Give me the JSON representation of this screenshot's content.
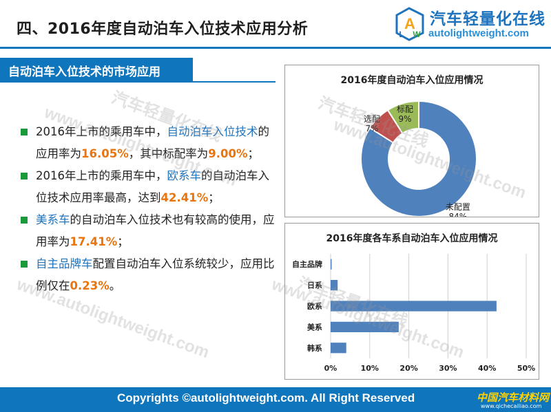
{
  "header": {
    "title": "四、2016年度自动泊车入位技术应用分析",
    "logo_cn": "汽车轻量化在线",
    "logo_en": "autolightweight.com"
  },
  "section": {
    "banner": "自动泊车入位技术的市场应用"
  },
  "bullets": [
    {
      "parts": [
        "2016年上市的乘用车中，",
        "自动泊车入位技术",
        "的应用率为",
        "16.05%",
        "，其中标配率为",
        "9.00%",
        "；"
      ]
    },
    {
      "parts": [
        "2016年上市的乘用车中，",
        "欧系车",
        "的自动泊车入位技术应用率最高，达到",
        "42.41%",
        "；"
      ]
    },
    {
      "parts": [
        "美系车",
        "的自动泊车入位技术也有较高的使用，应用率为",
        "17.41%",
        "；"
      ]
    },
    {
      "parts": [
        "自主品牌车",
        "配置自动泊车入位系统较少，应用比例仅在",
        "0.23%",
        "。"
      ]
    }
  ],
  "chart_data": [
    {
      "type": "pie",
      "title": "2016年度自动泊车入位应用情况",
      "categories": [
        "未配置",
        "选配",
        "标配"
      ],
      "values": [
        84,
        7,
        9
      ],
      "value_labels": [
        "84%",
        "7%",
        "9%"
      ],
      "colors": [
        "#4f81bd",
        "#c0504d",
        "#9bbb59"
      ],
      "donut": true
    },
    {
      "type": "bar",
      "orientation": "horizontal",
      "title": "2016年度各车系自动泊车入位应用情况",
      "categories": [
        "自主品牌",
        "日系",
        "欧系",
        "美系",
        "韩系"
      ],
      "values": [
        0.23,
        1.8,
        42.41,
        17.41,
        4.0
      ],
      "xlim": [
        0,
        50
      ],
      "xticks": [
        "0%",
        "10%",
        "20%",
        "30%",
        "40%",
        "50%"
      ],
      "grid": true,
      "color": "#4f81bd"
    }
  ],
  "watermark": {
    "cn": "汽车轻量化在线",
    "en": "www.autolightweight.com"
  },
  "footer": {
    "copyright": "Copyrights ©autolightweight.com. All Right Reserved",
    "logo_cn": "中国汽车材料网",
    "logo_en": "www.qichecailiao.com"
  }
}
